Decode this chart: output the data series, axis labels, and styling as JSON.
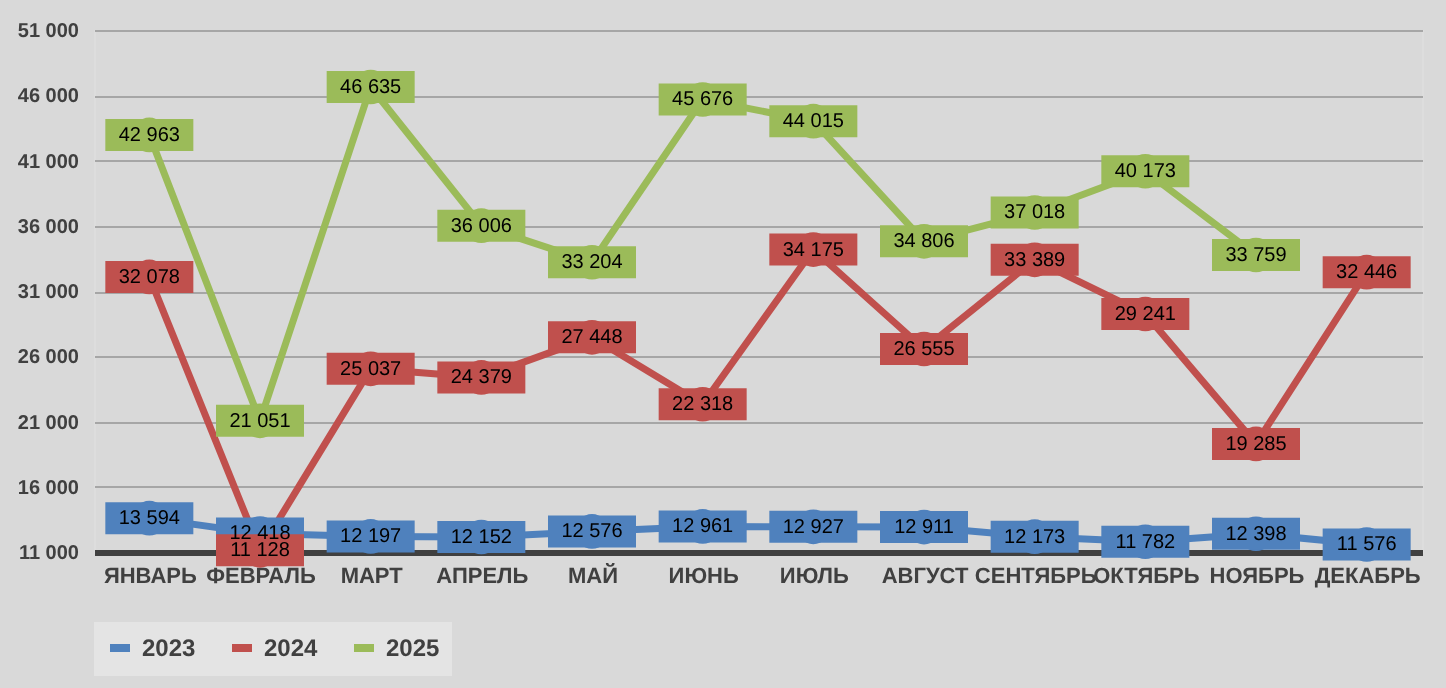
{
  "chart_data": {
    "type": "line",
    "categories": [
      "ЯНВАРЬ",
      "ФЕВРАЛЬ",
      "МАРТ",
      "АПРЕЛЬ",
      "МАЙ",
      "ИЮНЬ",
      "ИЮЛЬ",
      "АВГУСТ",
      "СЕНТЯБРЬ",
      "ОКТЯБРЬ",
      "НОЯБРЬ",
      "ДЕКАБРЬ"
    ],
    "series": [
      {
        "name": "2023",
        "color": "#4f81bd",
        "values": [
          13594,
          12418,
          12197,
          12152,
          12576,
          12961,
          12927,
          12911,
          12173,
          11782,
          12398,
          11576
        ]
      },
      {
        "name": "2024",
        "color": "#c0504d",
        "values": [
          32078,
          11128,
          25037,
          24379,
          27448,
          22318,
          34175,
          26555,
          33389,
          29241,
          19285,
          32446
        ]
      },
      {
        "name": "2025",
        "color": "#9bbb59",
        "values": [
          42963,
          21051,
          46635,
          36006,
          33204,
          45676,
          44015,
          34806,
          37018,
          40173,
          33759,
          null
        ]
      }
    ],
    "ylim": [
      11000,
      51000
    ],
    "yticks": [
      11000,
      16000,
      21000,
      26000,
      31000,
      36000,
      41000,
      46000,
      51000
    ],
    "grid": "y",
    "legend": "bottom",
    "marker": "circle",
    "line_style": "solid",
    "data_labels": true
  }
}
